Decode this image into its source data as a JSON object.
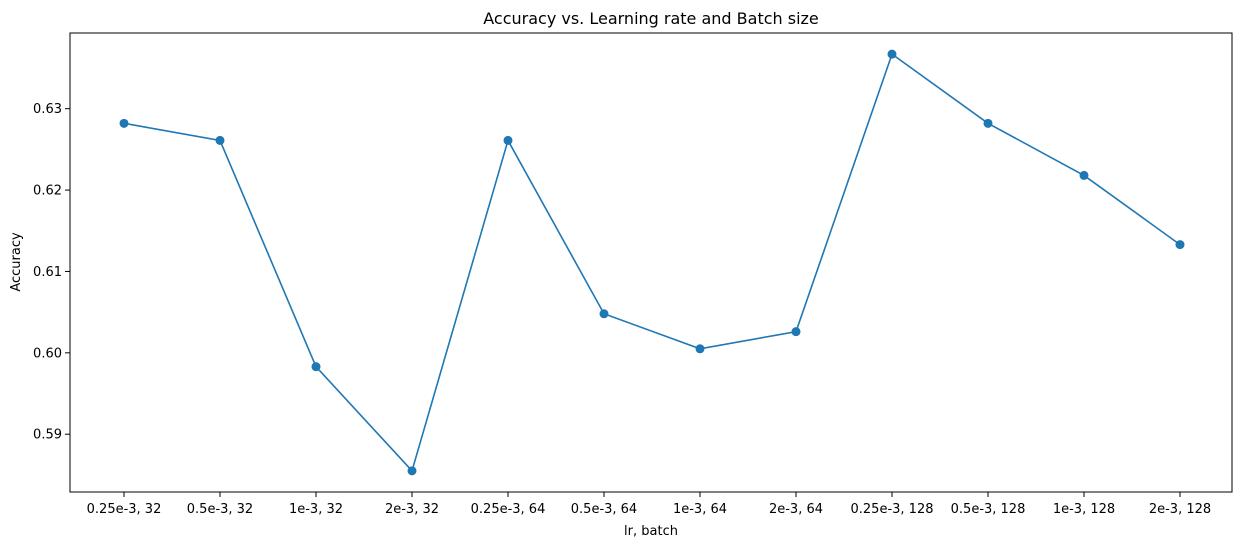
{
  "chart_data": {
    "type": "line",
    "title": "Accuracy vs. Learning rate and Batch size",
    "xlabel": "lr, batch",
    "ylabel": "Accuracy",
    "categories": [
      "0.25e-3, 32",
      "0.5e-3, 32",
      "1e-3, 32",
      "2e-3, 32",
      "0.25e-3, 64",
      "0.5e-3, 64",
      "1e-3, 64",
      "2e-3, 64",
      "0.25e-3, 128",
      "0.5e-3, 128",
      "1e-3, 128",
      "2e-3, 128"
    ],
    "series": [
      {
        "values": [
          0.6282,
          0.6261,
          0.5983,
          0.5855,
          0.6261,
          0.6048,
          0.6005,
          0.6026,
          0.6367,
          0.6282,
          0.6218,
          0.6133
        ]
      }
    ],
    "yticks": [
      0.59,
      0.6,
      0.61,
      0.62,
      0.63
    ],
    "ytick_labels": [
      "0.59",
      "0.60",
      "0.61",
      "0.62",
      "0.63"
    ],
    "ylim": [
      0.5829,
      0.6393
    ],
    "grid": false,
    "line_color": "#1f77b4"
  }
}
